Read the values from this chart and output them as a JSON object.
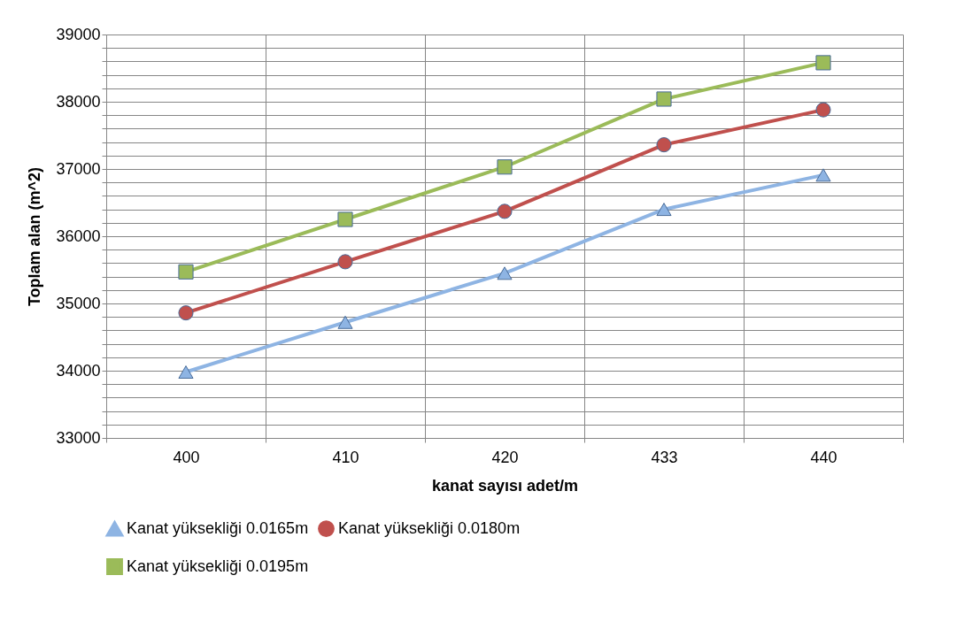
{
  "chart_data": {
    "type": "line",
    "xlabel": "kanat sayısı adet/m",
    "ylabel": "Toplam alan (m^2)",
    "categories": [
      "400",
      "410",
      "420",
      "433",
      "440"
    ],
    "series": [
      {
        "name": "Kanat yüksekliği 0.0165m",
        "color": "#8eb4e3",
        "marker": "triangle",
        "values": [
          33980,
          34720,
          35450,
          36400,
          36910
        ]
      },
      {
        "name": "Kanat yüksekliği 0.0180m",
        "color": "#c0504d",
        "marker": "circle",
        "values": [
          34860,
          35620,
          36370,
          37360,
          37880
        ]
      },
      {
        "name": "Kanat yüksekliği 0.0195m",
        "color": "#9bbb59",
        "marker": "square",
        "values": [
          35470,
          36250,
          37030,
          38040,
          38580
        ]
      }
    ],
    "ylim": [
      33000,
      39000
    ],
    "yticks": [
      33000,
      {
        "value": 33200,
        "label": null
      },
      {
        "value": 33400,
        "label": null
      },
      {
        "value": 33600,
        "label": null
      },
      {
        "value": 33800,
        "label": null
      },
      34000,
      {
        "value": 34200,
        "label": null
      },
      {
        "value": 34400,
        "label": null
      },
      {
        "value": 34600,
        "label": null
      },
      {
        "value": 34800,
        "label": null
      },
      35000,
      {
        "value": 35200,
        "label": null
      },
      {
        "value": 35400,
        "label": null
      },
      {
        "value": 35600,
        "label": null
      },
      {
        "value": 35800,
        "label": null
      },
      36000,
      {
        "value": 36200,
        "label": null
      },
      {
        "value": 36400,
        "label": null
      },
      {
        "value": 36600,
        "label": null
      },
      {
        "value": 36800,
        "label": null
      },
      37000,
      {
        "value": 37200,
        "label": null
      },
      {
        "value": 37400,
        "label": null
      },
      {
        "value": 37600,
        "label": null
      },
      {
        "value": 37800,
        "label": null
      },
      38000,
      {
        "value": 38200,
        "label": null
      },
      {
        "value": 38400,
        "label": null
      },
      {
        "value": 38600,
        "label": null
      },
      {
        "value": 38800,
        "label": null
      },
      39000
    ],
    "grid": true,
    "legend": "bottom"
  }
}
